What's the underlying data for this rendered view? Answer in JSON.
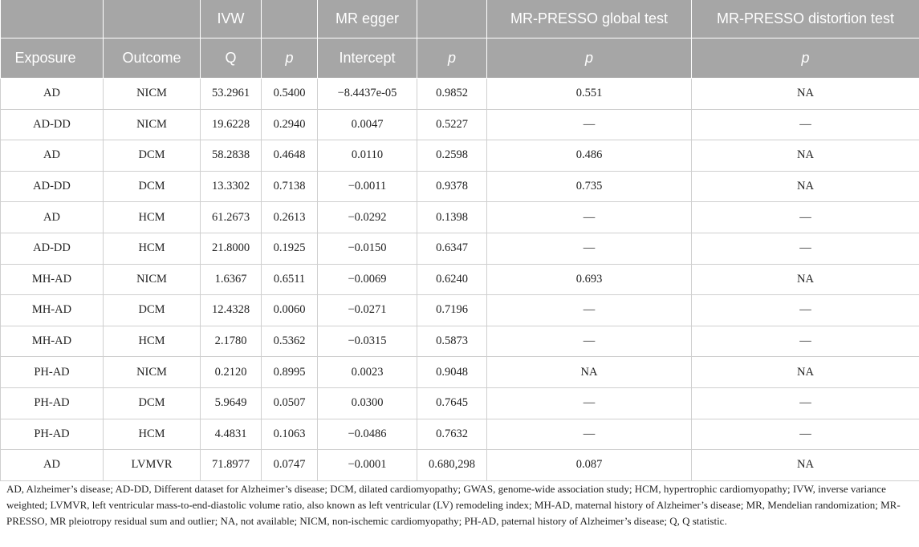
{
  "header": {
    "ivw": "IVW",
    "mr_egger": "MR egger",
    "presso_global": "MR-PRESSO global test",
    "presso_distortion": "MR-PRESSO distortion test",
    "exposure": "Exposure",
    "outcome": "Outcome",
    "q": "Q",
    "p": "p",
    "intercept": "Intercept"
  },
  "rows": [
    {
      "exposure": "AD",
      "outcome": "NICM",
      "q": "53.2961",
      "ivw_p": "0.5400",
      "intercept": "−8.4437e-05",
      "egger_p": "0.9852",
      "global_p": "0.551",
      "distortion_p": "NA"
    },
    {
      "exposure": "AD-DD",
      "outcome": "NICM",
      "q": "19.6228",
      "ivw_p": "0.2940",
      "intercept": "0.0047",
      "egger_p": "0.5227",
      "global_p": "—",
      "distortion_p": "—"
    },
    {
      "exposure": "AD",
      "outcome": "DCM",
      "q": "58.2838",
      "ivw_p": "0.4648",
      "intercept": "0.0110",
      "egger_p": "0.2598",
      "global_p": "0.486",
      "distortion_p": "NA"
    },
    {
      "exposure": "AD-DD",
      "outcome": "DCM",
      "q": "13.3302",
      "ivw_p": "0.7138",
      "intercept": "−0.0011",
      "egger_p": "0.9378",
      "global_p": "0.735",
      "distortion_p": "NA"
    },
    {
      "exposure": "AD",
      "outcome": "HCM",
      "q": "61.2673",
      "ivw_p": "0.2613",
      "intercept": "−0.0292",
      "egger_p": "0.1398",
      "global_p": "—",
      "distortion_p": "—"
    },
    {
      "exposure": "AD-DD",
      "outcome": "HCM",
      "q": "21.8000",
      "ivw_p": "0.1925",
      "intercept": "−0.0150",
      "egger_p": "0.6347",
      "global_p": "—",
      "distortion_p": "—"
    },
    {
      "exposure": "MH-AD",
      "outcome": "NICM",
      "q": "1.6367",
      "ivw_p": "0.6511",
      "intercept": "−0.0069",
      "egger_p": "0.6240",
      "global_p": "0.693",
      "distortion_p": "NA"
    },
    {
      "exposure": "MH-AD",
      "outcome": "DCM",
      "q": "12.4328",
      "ivw_p": "0.0060",
      "intercept": "−0.0271",
      "egger_p": "0.7196",
      "global_p": "—",
      "distortion_p": "—"
    },
    {
      "exposure": "MH-AD",
      "outcome": "HCM",
      "q": "2.1780",
      "ivw_p": "0.5362",
      "intercept": "−0.0315",
      "egger_p": "0.5873",
      "global_p": "—",
      "distortion_p": "—"
    },
    {
      "exposure": "PH-AD",
      "outcome": "NICM",
      "q": "0.2120",
      "ivw_p": "0.8995",
      "intercept": "0.0023",
      "egger_p": "0.9048",
      "global_p": "NA",
      "distortion_p": "NA"
    },
    {
      "exposure": "PH-AD",
      "outcome": "DCM",
      "q": "5.9649",
      "ivw_p": "0.0507",
      "intercept": "0.0300",
      "egger_p": "0.7645",
      "global_p": "—",
      "distortion_p": "—"
    },
    {
      "exposure": "PH-AD",
      "outcome": "HCM",
      "q": "4.4831",
      "ivw_p": "0.1063",
      "intercept": "−0.0486",
      "egger_p": "0.7632",
      "global_p": "—",
      "distortion_p": "—"
    },
    {
      "exposure": "AD",
      "outcome": "LVMVR",
      "q": "71.8977",
      "ivw_p": "0.0747",
      "intercept": "−0.0001",
      "egger_p": "0.680,298",
      "global_p": "0.087",
      "distortion_p": "NA"
    }
  ],
  "footnote": "AD, Alzheimer’s disease; AD-DD, Different dataset for Alzheimer’s disease; DCM, dilated cardiomyopathy; GWAS, genome-wide association study; HCM, hypertrophic cardiomyopathy; IVW, inverse variance weighted; LVMVR, left ventricular mass-to-end-diastolic volume ratio, also known as left ventricular (LV) remodeling index; MH-AD, maternal history of Alzheimer’s disease; MR, Mendelian randomization; MR-PRESSO, MR pleiotropy residual sum and outlier; NA, not available; NICM, non-ischemic cardiomyopathy; PH-AD, paternal history of Alzheimer’s disease; Q, Q statistic."
}
